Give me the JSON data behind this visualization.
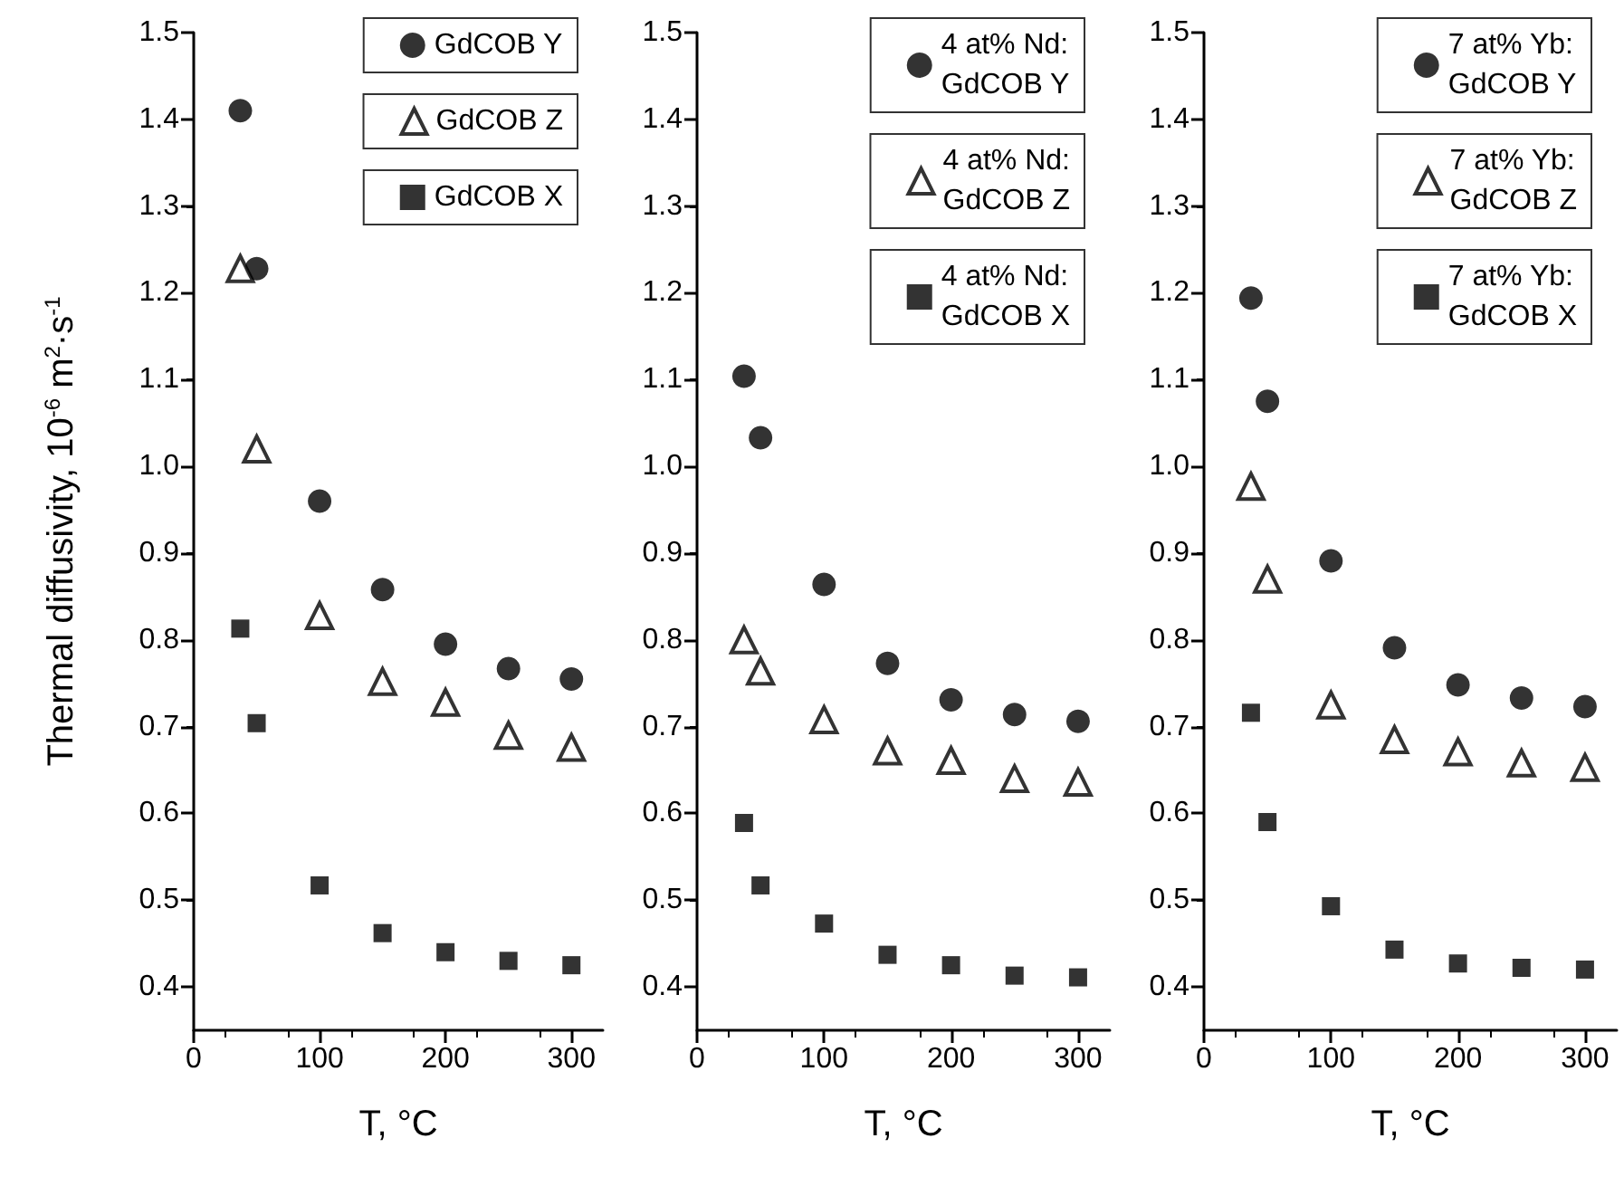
{
  "chart_data": [
    {
      "type": "scatter",
      "xlabel": "T, °C",
      "ylabel": "Thermal diffusivity, 10$^{-6}$ m$^{2}$·s$^{-1}$",
      "legend": "top right",
      "x": [
        37,
        50,
        100,
        150,
        200,
        250,
        300
      ],
      "xlim": [
        0,
        325
      ],
      "xticks": [
        0,
        100,
        200,
        300
      ],
      "ylim": [
        0.35,
        1.5
      ],
      "yticks": [
        {
          "value": 0.4,
          "label": "0.4"
        },
        {
          "value": 0.5,
          "label": "0.5"
        },
        {
          "value": 0.6,
          "label": "0.6"
        },
        {
          "value": 0.7,
          "label": "0.7"
        },
        {
          "value": 0.8,
          "label": "0.8"
        },
        {
          "value": 0.9,
          "label": "0.9"
        },
        {
          "value": 1.0,
          "label": "1.0"
        },
        {
          "value": 1.1,
          "label": "1.1"
        },
        {
          "value": 1.2,
          "label": "1.2"
        },
        {
          "value": 1.3,
          "label": "1.3"
        },
        {
          "value": 1.4,
          "label": "1.4"
        },
        {
          "value": 1.5,
          "label": "1.5"
        }
      ],
      "series": [
        {
          "name": "GdCOB Y",
          "color": "#000000",
          "marker": "circle",
          "values": [
            1.41,
            1.228,
            0.96,
            0.858,
            0.795,
            0.767,
            0.755
          ]
        },
        {
          "name": "GdCOB Z",
          "color": "#000000",
          "marker": "triangle",
          "values": [
            1.228,
            1.02,
            0.828,
            0.752,
            0.728,
            0.69,
            0.676
          ]
        },
        {
          "name": "GdCOB X",
          "color": "#000000",
          "marker": "square",
          "values": [
            0.813,
            0.704,
            0.517,
            0.462,
            0.44,
            0.43,
            0.425
          ]
        }
      ]
    },
    {
      "type": "scatter",
      "xlabel": "T, °C",
      "legend": "top right",
      "x": [
        37,
        50,
        100,
        150,
        200,
        250,
        300
      ],
      "xlim": [
        0,
        325
      ],
      "xticks": [
        0,
        100,
        200,
        300
      ],
      "ylim": [
        0.35,
        1.5
      ],
      "yticks": [
        {
          "value": 0.4,
          "label": "0.4"
        },
        {
          "value": 0.5,
          "label": "0.5"
        },
        {
          "value": 0.6,
          "label": "0.6"
        },
        {
          "value": 0.7,
          "label": "0.7"
        },
        {
          "value": 0.8,
          "label": "0.8"
        },
        {
          "value": 0.9,
          "label": "0.9"
        },
        {
          "value": 1.0,
          "label": "1.0"
        },
        {
          "value": 1.1,
          "label": "1.1"
        },
        {
          "value": 1.2,
          "label": "1.2"
        },
        {
          "value": 1.3,
          "label": "1.3"
        },
        {
          "value": 1.4,
          "label": "1.4"
        },
        {
          "value": 1.5,
          "label": "1.5"
        }
      ],
      "series": [
        {
          "name": "4 at% Nd:\nGdCOB Y",
          "color": "#000000",
          "marker": "circle",
          "values": [
            1.104,
            1.033,
            0.864,
            0.773,
            0.731,
            0.714,
            0.706
          ]
        },
        {
          "name": "4 at% Nd:\nGdCOB Z",
          "color": "#000000",
          "marker": "triangle",
          "values": [
            0.8,
            0.764,
            0.708,
            0.672,
            0.661,
            0.64,
            0.636
          ]
        },
        {
          "name": "4 at% Nd:\nGdCOB X",
          "color": "#000000",
          "marker": "square",
          "values": [
            0.589,
            0.517,
            0.473,
            0.437,
            0.425,
            0.413,
            0.411
          ]
        }
      ]
    },
    {
      "type": "scatter",
      "xlabel": "T, °C",
      "legend": "top right",
      "x": [
        37,
        50,
        100,
        150,
        200,
        250,
        300
      ],
      "xlim": [
        0,
        325
      ],
      "xticks": [
        0,
        100,
        200,
        300
      ],
      "ylim": [
        0.35,
        1.5
      ],
      "yticks": [
        {
          "value": 0.4,
          "label": "0.4"
        },
        {
          "value": 0.5,
          "label": "0.5"
        },
        {
          "value": 0.6,
          "label": "0.6"
        },
        {
          "value": 0.7,
          "label": "0.7"
        },
        {
          "value": 0.8,
          "label": "0.8"
        },
        {
          "value": 0.9,
          "label": "0.9"
        },
        {
          "value": 1.0,
          "label": "1.0"
        },
        {
          "value": 1.1,
          "label": "1.1"
        },
        {
          "value": 1.2,
          "label": "1.2"
        },
        {
          "value": 1.3,
          "label": "1.3"
        },
        {
          "value": 1.4,
          "label": "1.4"
        },
        {
          "value": 1.5,
          "label": "1.5"
        }
      ],
      "series": [
        {
          "name": "7 at% Yb:\nGdCOB Y",
          "color": "#000000",
          "marker": "circle",
          "values": [
            1.194,
            1.075,
            0.891,
            0.791,
            0.748,
            0.733,
            0.723
          ]
        },
        {
          "name": "7 at% Yb:\nGdCOB Z",
          "color": "#000000",
          "marker": "triangle",
          "values": [
            0.977,
            0.87,
            0.725,
            0.685,
            0.671,
            0.658,
            0.653
          ]
        },
        {
          "name": "7 at% Yb:\nGdCOB X",
          "color": "#000000",
          "marker": "square",
          "values": [
            0.716,
            0.59,
            0.493,
            0.443,
            0.427,
            0.422,
            0.42
          ]
        }
      ]
    }
  ]
}
